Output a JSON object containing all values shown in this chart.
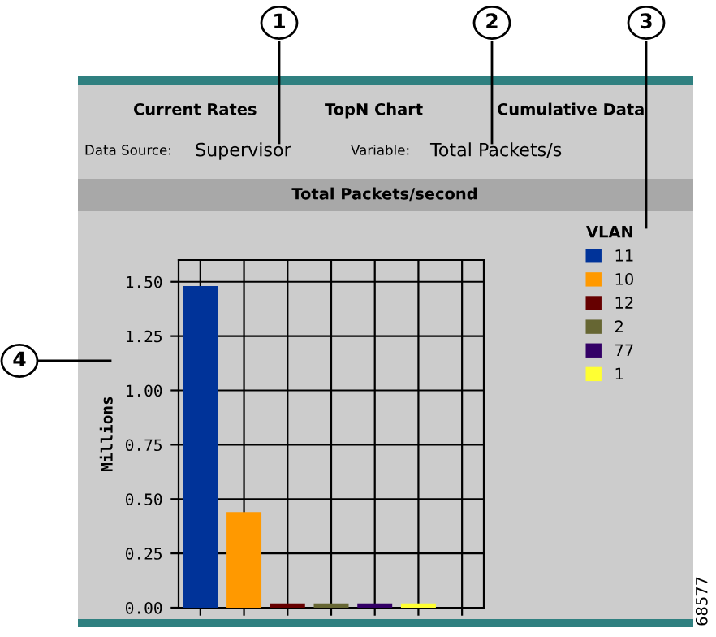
{
  "chart_data": {
    "type": "bar",
    "title": "Total Packets/second",
    "ylabel": "Millions",
    "legend_title": "VLAN",
    "categories": [
      null,
      null,
      null,
      null,
      null,
      null,
      null
    ],
    "series": [
      {
        "name": "11",
        "color": "#003399",
        "values": [
          1.48,
          null,
          null,
          null,
          null,
          null,
          null
        ]
      },
      {
        "name": "10",
        "color": "#ff9900",
        "values": [
          null,
          0.44,
          null,
          null,
          null,
          null,
          null
        ]
      },
      {
        "name": "12",
        "color": "#660000",
        "values": [
          null,
          null,
          0.02,
          null,
          null,
          null,
          null
        ]
      },
      {
        "name": "2",
        "color": "#666633",
        "values": [
          null,
          null,
          null,
          0.02,
          null,
          null,
          null
        ]
      },
      {
        "name": "77",
        "color": "#330066",
        "values": [
          null,
          null,
          null,
          null,
          0.02,
          null,
          null
        ]
      },
      {
        "name": "1",
        "color": "#ffff33",
        "values": [
          null,
          null,
          null,
          null,
          null,
          0.02,
          null
        ]
      }
    ],
    "ylim": [
      0,
      1.6
    ],
    "yticks": [
      {
        "value": 0,
        "label": "0.00"
      },
      {
        "value": 0.25,
        "label": "0.25"
      },
      {
        "value": 0.5,
        "label": "0.50"
      },
      {
        "value": 0.75,
        "label": "0.75"
      },
      {
        "value": 1.0,
        "label": "1.00"
      },
      {
        "value": 1.25,
        "label": "1.25"
      },
      {
        "value": 1.5,
        "label": "1.50"
      }
    ],
    "grid": true,
    "legend": "right",
    "annotations": [
      "Current Rates",
      "TopN Chart",
      "Cumulative Data",
      "Data Source:",
      "Supervisor",
      "Variable:",
      "Total Packets/s",
      "1",
      "2",
      "3",
      "4",
      "68577"
    ]
  }
}
